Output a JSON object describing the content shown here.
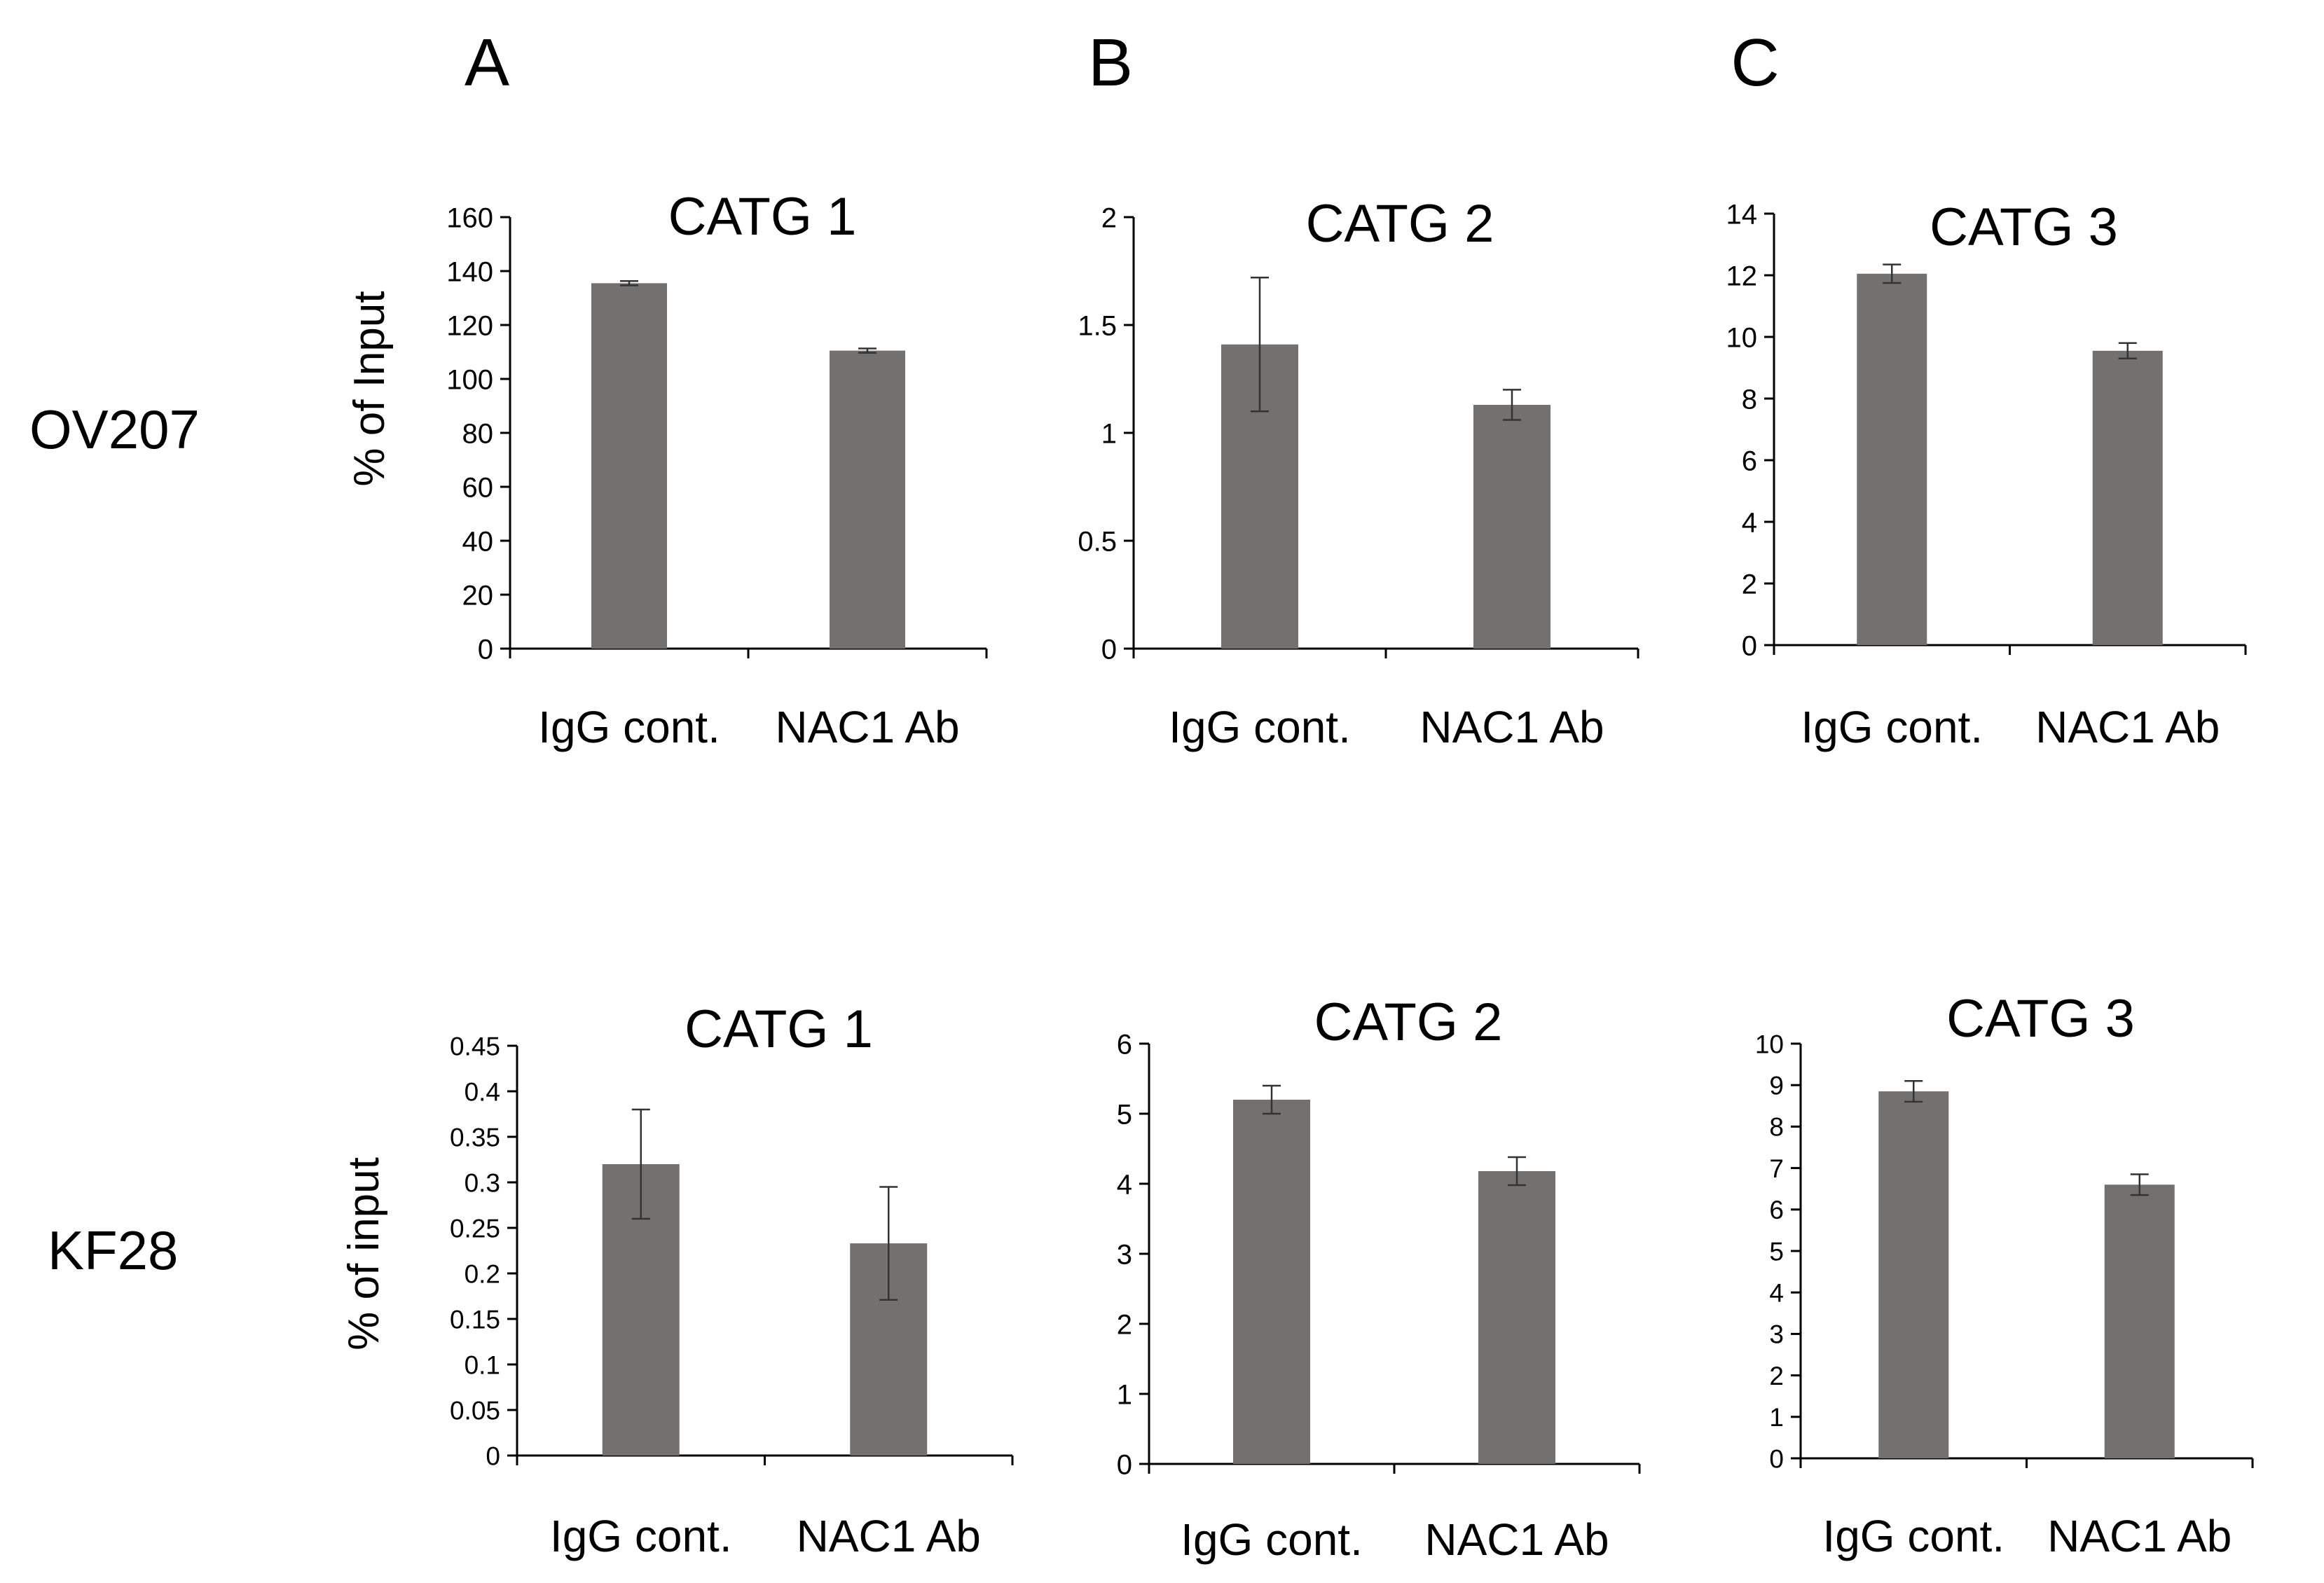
{
  "colors": {
    "bar": "#737070",
    "axis": "#000000",
    "error_bar": "#333333"
  },
  "column_labels": [
    "A",
    "B",
    "C"
  ],
  "row_labels": [
    "OV207",
    "KF28"
  ],
  "chart_data": [
    {
      "type": "bar",
      "title": "CATG 1",
      "ylabel": "% of Input",
      "ylim": [
        0,
        160
      ],
      "yticks": [
        "0",
        "20",
        "40",
        "60",
        "80",
        "100",
        "120",
        "140",
        "160"
      ],
      "categories": [
        "IgG cont.",
        "NAC1 Ab"
      ],
      "values": [
        135.5,
        110.5
      ],
      "errors": [
        0.8,
        0.8
      ],
      "grid": false,
      "legend": "none"
    },
    {
      "type": "bar",
      "title": "CATG 2",
      "ylabel": "",
      "ylim": [
        0,
        2
      ],
      "yticks": [
        "0",
        "0.5",
        "1",
        "1.5",
        "2"
      ],
      "categories": [
        "IgG cont.",
        "NAC1 Ab"
      ],
      "values": [
        1.41,
        1.13
      ],
      "errors": [
        0.31,
        0.07
      ],
      "grid": false,
      "legend": "none"
    },
    {
      "type": "bar",
      "title": "CATG 3",
      "ylabel": "",
      "ylim": [
        0,
        14
      ],
      "yticks": [
        "0",
        "2",
        "4",
        "6",
        "8",
        "10",
        "12",
        "14"
      ],
      "categories": [
        "IgG cont.",
        "NAC1 Ab"
      ],
      "values": [
        12.05,
        9.55
      ],
      "errors": [
        0.3,
        0.25
      ],
      "grid": false,
      "legend": "none"
    },
    {
      "type": "bar",
      "title": "CATG 1",
      "ylabel": "% of input",
      "ylim": [
        0,
        0.45
      ],
      "yticks": [
        "0",
        "0.05",
        "0.1",
        "0.15",
        "0.2",
        "0.25",
        "0.3",
        "0.35",
        "0.4",
        "0.45"
      ],
      "categories": [
        "IgG cont.",
        "NAC1 Ab"
      ],
      "values": [
        0.32,
        0.233
      ],
      "errors": [
        0.06,
        0.062
      ],
      "grid": false,
      "legend": "none"
    },
    {
      "type": "bar",
      "title": "CATG 2",
      "ylabel": "",
      "ylim": [
        0,
        6
      ],
      "yticks": [
        "0",
        "1",
        "2",
        "3",
        "4",
        "5",
        "6"
      ],
      "categories": [
        "IgG cont.",
        "NAC1 Ab"
      ],
      "values": [
        5.2,
        4.18
      ],
      "errors": [
        0.2,
        0.2
      ],
      "grid": false,
      "legend": "none"
    },
    {
      "type": "bar",
      "title": "CATG 3",
      "ylabel": "",
      "ylim": [
        0,
        10
      ],
      "yticks": [
        "0",
        "1",
        "2",
        "3",
        "4",
        "5",
        "6",
        "7",
        "8",
        "9",
        "10"
      ],
      "categories": [
        "IgG cont.",
        "NAC1 Ab"
      ],
      "values": [
        8.85,
        6.6
      ],
      "errors": [
        0.25,
        0.25
      ],
      "grid": false,
      "legend": "none"
    }
  ]
}
